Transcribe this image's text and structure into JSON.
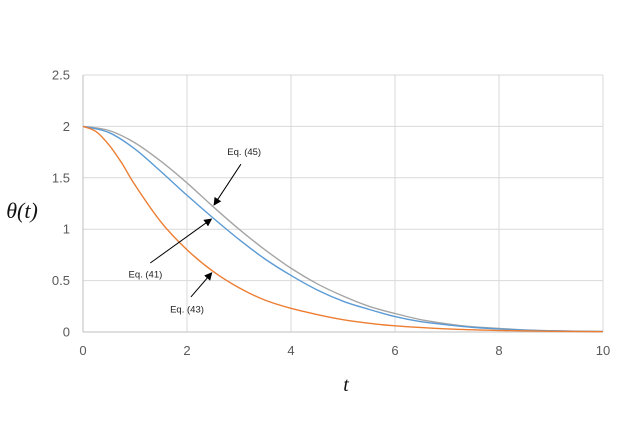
{
  "chart_data": {
    "type": "line",
    "xlabel": "t",
    "ylabel": "θ(t)",
    "xlim": [
      0,
      10
    ],
    "ylim": [
      0,
      2.5
    ],
    "xticks": [
      0,
      2,
      4,
      6,
      8,
      10
    ],
    "yticks": [
      0,
      0.5,
      1,
      1.5,
      2,
      2.5
    ],
    "grid": true,
    "series": [
      {
        "name": "Eq. (45)",
        "color": "#a5a5a5",
        "x": [
          0,
          0.5,
          1,
          1.5,
          2,
          2.5,
          3,
          3.5,
          4,
          4.5,
          5,
          5.5,
          6,
          6.5,
          7,
          7.5,
          8,
          8.5,
          9,
          9.5,
          10
        ],
        "y": [
          2,
          1.96,
          1.84,
          1.66,
          1.45,
          1.22,
          1.0,
          0.8,
          0.62,
          0.47,
          0.35,
          0.25,
          0.18,
          0.12,
          0.08,
          0.05,
          0.035,
          0.02,
          0.013,
          0.008,
          0.005
        ]
      },
      {
        "name": "Eq. (41)",
        "color": "#5b9bd5",
        "x": [
          0,
          0.5,
          1,
          1.5,
          2,
          2.5,
          3,
          3.5,
          4,
          4.5,
          5,
          5.5,
          6,
          6.5,
          7,
          7.5,
          8,
          8.5,
          9,
          9.5,
          10
        ],
        "y": [
          2,
          1.94,
          1.78,
          1.56,
          1.33,
          1.11,
          0.9,
          0.71,
          0.55,
          0.41,
          0.3,
          0.22,
          0.15,
          0.1,
          0.07,
          0.045,
          0.03,
          0.018,
          0.011,
          0.007,
          0.004
        ]
      },
      {
        "name": "Eq. (43)",
        "color": "#ed7d31",
        "x": [
          0,
          0.25,
          0.5,
          0.75,
          1,
          1.5,
          2,
          2.5,
          3,
          3.5,
          4,
          4.5,
          5,
          5.5,
          6,
          7,
          8,
          9,
          10
        ],
        "y": [
          2,
          1.95,
          1.82,
          1.64,
          1.43,
          1.07,
          0.8,
          0.59,
          0.43,
          0.31,
          0.23,
          0.17,
          0.12,
          0.085,
          0.06,
          0.03,
          0.015,
          0.007,
          0.003
        ]
      }
    ],
    "annotations": [
      {
        "text": "Eq. (45)",
        "series": 0,
        "target": [
          2.5,
          1.22
        ],
        "label_at": [
          3.1,
          1.72
        ]
      },
      {
        "text": "Eq. (41)",
        "series": 1,
        "target": [
          2.5,
          1.11
        ],
        "label_at": [
          1.2,
          0.53
        ]
      },
      {
        "text": "Eq. (43)",
        "series": 2,
        "target": [
          2.5,
          0.59
        ],
        "label_at": [
          2.0,
          0.19
        ]
      }
    ]
  }
}
